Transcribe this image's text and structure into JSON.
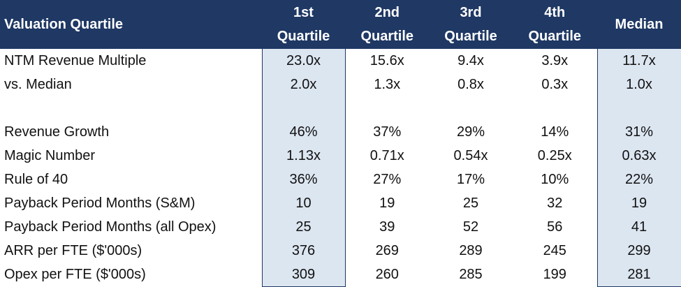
{
  "header": {
    "title": "Valuation Quartile",
    "columns": [
      "1st Quartile",
      "2nd Quartile",
      "3rd Quartile",
      "4th Quartile",
      "Median"
    ]
  },
  "sections": [
    {
      "rows": [
        {
          "label": "NTM Revenue Multiple",
          "cells": [
            "23.0x",
            "15.6x",
            "9.4x",
            "3.9x",
            "11.7x"
          ]
        },
        {
          "label": "vs. Median",
          "cells": [
            "2.0x",
            "1.3x",
            "0.8x",
            "0.3x",
            "1.0x"
          ]
        }
      ]
    },
    {
      "rows": [
        {
          "label": "Revenue Growth",
          "cells": [
            "46%",
            "37%",
            "29%",
            "14%",
            "31%"
          ]
        },
        {
          "label": "Magic Number",
          "cells": [
            "1.13x",
            "0.71x",
            "0.54x",
            "0.25x",
            "0.63x"
          ]
        },
        {
          "label": "Rule of 40",
          "cells": [
            "36%",
            "27%",
            "17%",
            "10%",
            "22%"
          ]
        },
        {
          "label": "Payback Period Months (S&M)",
          "cells": [
            "10",
            "19",
            "25",
            "32",
            "19"
          ]
        },
        {
          "label": "Payback Period Months (all Opex)",
          "cells": [
            "25",
            "39",
            "52",
            "56",
            "41"
          ]
        },
        {
          "label": "ARR per FTE ($'000s)",
          "cells": [
            "376",
            "269",
            "289",
            "245",
            "299"
          ]
        },
        {
          "label": "Opex per FTE ($'000s)",
          "cells": [
            "309",
            "260",
            "285",
            "199",
            "281"
          ]
        }
      ]
    }
  ]
}
